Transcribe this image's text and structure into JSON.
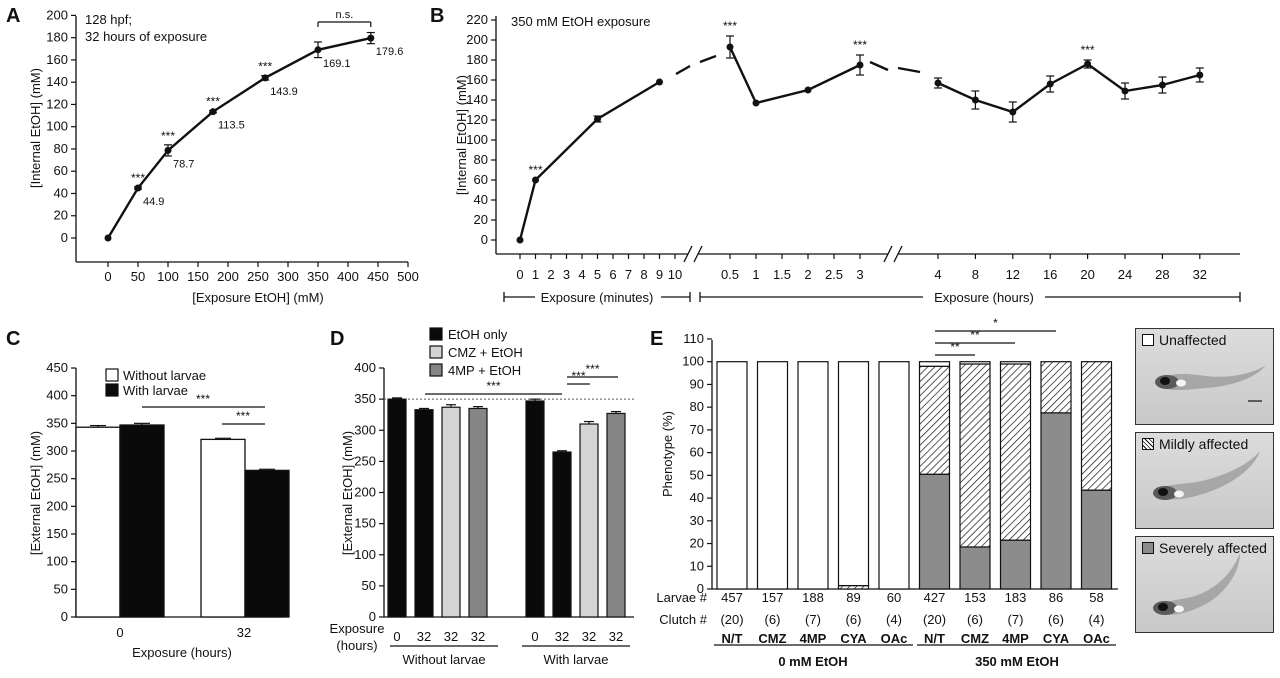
{
  "chart_data": [
    {
      "panel": "A",
      "type": "line",
      "annotation": [
        "128 hpf;",
        "32 hours of exposure"
      ],
      "xlabel": "[Exposure EtOH] (mM)",
      "ylabel": "[Internal EtOH] (mM)",
      "xlim": [
        0,
        500
      ],
      "ylim": [
        0,
        200
      ],
      "xticks": [
        0,
        50,
        100,
        150,
        200,
        250,
        300,
        350,
        400,
        450,
        500
      ],
      "yticks": [
        0,
        20,
        40,
        60,
        80,
        100,
        120,
        140,
        160,
        180,
        200
      ],
      "x": [
        0,
        50,
        100,
        175,
        262,
        350,
        438
      ],
      "y": [
        0,
        44.9,
        78.7,
        113.5,
        143.9,
        169.1,
        179.6
      ],
      "error": [
        0,
        1,
        5,
        1,
        2,
        7,
        5
      ],
      "data_labels": [
        "",
        "44.9",
        "78.7",
        "113.5",
        "143.9",
        "169.1",
        "179.6"
      ],
      "significance": [
        "",
        "***",
        "***",
        "***",
        "***",
        "",
        ""
      ],
      "comparison": {
        "from_x": 350,
        "to_x": 438,
        "label": "n.s."
      }
    },
    {
      "panel": "B",
      "type": "line",
      "annotation": "350 mM EtOH exposure",
      "ylabel": "[Internal EtOH] (mM)",
      "ylim": [
        0,
        220
      ],
      "yticks": [
        0,
        20,
        40,
        60,
        80,
        100,
        120,
        140,
        160,
        180,
        200,
        220
      ],
      "segments": [
        {
          "axis_label": "Exposure (minutes)",
          "ticks": [
            "0",
            "1",
            "2",
            "3",
            "4",
            "5",
            "6",
            "7",
            "8",
            "9",
            "10"
          ],
          "x": [
            0,
            1,
            5,
            9
          ],
          "y": [
            0,
            60,
            121,
            158
          ],
          "error": [
            0,
            0,
            3,
            0
          ],
          "significance": [
            "",
            "***",
            "",
            ""
          ]
        },
        {
          "axis_label": "Exposure (hours)",
          "ticks": [
            "0.5",
            "1",
            "1.5",
            "2",
            "2.5",
            "3"
          ],
          "x": [
            0.5,
            1,
            2,
            3
          ],
          "y": [
            193,
            137,
            150,
            175
          ],
          "error": [
            11,
            0,
            0,
            10
          ],
          "significance": [
            "***",
            "",
            "",
            "***"
          ]
        },
        {
          "axis_label": "",
          "ticks": [
            "4",
            "8",
            "12",
            "16",
            "20",
            "24",
            "28",
            "32"
          ],
          "x": [
            4,
            8,
            12,
            16,
            20,
            24,
            28,
            32
          ],
          "y": [
            157,
            140,
            128,
            156,
            176,
            149,
            155,
            165
          ],
          "error": [
            5,
            9,
            10,
            8,
            4,
            8,
            8,
            7
          ],
          "significance": [
            "",
            "",
            "",
            "",
            "***",
            "",
            "",
            ""
          ]
        }
      ]
    },
    {
      "panel": "C",
      "type": "bar",
      "categories": [
        "0",
        "32"
      ],
      "xlabel": "Exposure (hours)",
      "ylabel": "[External EtOH] (mM)",
      "ylim": [
        0,
        450
      ],
      "yticks": [
        0,
        50,
        100,
        150,
        200,
        250,
        300,
        350,
        400,
        450
      ],
      "series": [
        {
          "name": "Without larvae",
          "color": "#ffffff",
          "values": [
            343,
            321
          ],
          "error": [
            3,
            2
          ]
        },
        {
          "name": "With larvae",
          "color": "#0a0a0a",
          "values": [
            347,
            265
          ],
          "error": [
            3,
            2
          ]
        }
      ],
      "significance": [
        "***",
        "***"
      ]
    },
    {
      "panel": "D",
      "type": "bar",
      "ylabel": "[External EtOH] (mM)",
      "ylim": [
        0,
        400
      ],
      "yticks": [
        0,
        50,
        100,
        150,
        200,
        250,
        300,
        350,
        400
      ],
      "legend": [
        {
          "name": "EtOH only",
          "color": "#0a0a0a"
        },
        {
          "name": "CMZ + EtOH",
          "color": "#d4d4d4"
        },
        {
          "name": "4MP + EtOH",
          "color": "#858585"
        }
      ],
      "row_title": [
        "Exposure",
        "(hours)"
      ],
      "groups": [
        {
          "name": "Without larvae",
          "bars": [
            {
              "label": "0",
              "value": 350,
              "error": 2,
              "color": "#0a0a0a"
            },
            {
              "label": "32",
              "value": 333,
              "error": 2,
              "color": "#0a0a0a"
            },
            {
              "label": "32",
              "value": 337,
              "error": 4,
              "color": "#d4d4d4"
            },
            {
              "label": "32",
              "value": 335,
              "error": 3,
              "color": "#858585"
            }
          ]
        },
        {
          "name": "With larvae",
          "bars": [
            {
              "label": "0",
              "value": 347,
              "error": 3,
              "color": "#0a0a0a"
            },
            {
              "label": "32",
              "value": 265,
              "error": 2,
              "color": "#0a0a0a"
            },
            {
              "label": "32",
              "value": 310,
              "error": 4,
              "color": "#d4d4d4"
            },
            {
              "label": "32",
              "value": 327,
              "error": 3,
              "color": "#858585"
            }
          ]
        }
      ],
      "reference_line": 350,
      "significance": [
        "***",
        "***",
        "***"
      ]
    },
    {
      "panel": "E",
      "type": "bar",
      "ylabel": "Phenotype (%)",
      "ylim": [
        0,
        110
      ],
      "yticks": [
        0,
        10,
        20,
        30,
        40,
        50,
        60,
        70,
        80,
        90,
        100,
        110
      ],
      "categories": [
        "N/T",
        "CMZ",
        "4MP",
        "CYA",
        "OAc",
        "N/T",
        "CMZ",
        "4MP",
        "CYA",
        "OAc"
      ],
      "row_labels": [
        "Larvae #",
        "Clutch #"
      ],
      "larvae": [
        "457",
        "157",
        "188",
        "89",
        "60",
        "427",
        "153",
        "183",
        "86",
        "58"
      ],
      "clutch": [
        "(20)",
        "(6)",
        "(7)",
        "(6)",
        "(4)",
        "(20)",
        "(6)",
        "(7)",
        "(6)",
        "(4)"
      ],
      "groups": [
        "0 mM EtOH",
        "350 mM EtOH"
      ],
      "series": [
        {
          "name": "Severely affected",
          "color": "#8c8c8c",
          "values": [
            0,
            0,
            0,
            0,
            0,
            50.5,
            18.5,
            21.5,
            77.5,
            43.5
          ]
        },
        {
          "name": "Mildly affected",
          "color": "#111111",
          "values": [
            0,
            0,
            0,
            1.5,
            0,
            47.5,
            80.5,
            77.5,
            22.5,
            56.5
          ]
        },
        {
          "name": "Unaffected",
          "color": "#ffffff",
          "values": [
            100,
            100,
            100,
            98.5,
            100,
            2,
            1,
            1,
            0,
            0
          ]
        }
      ],
      "significance": [
        "**",
        "**",
        "*"
      ]
    }
  ],
  "panels": {
    "a": "A",
    "b": "B",
    "c": "C",
    "d": "D",
    "e": "E"
  },
  "photo_legend": [
    "Unaffected",
    "Mildly affected",
    "Severely affected"
  ],
  "legend_icons": [
    "larva-photo-icon",
    "larva-photo-icon",
    "larva-photo-icon"
  ]
}
